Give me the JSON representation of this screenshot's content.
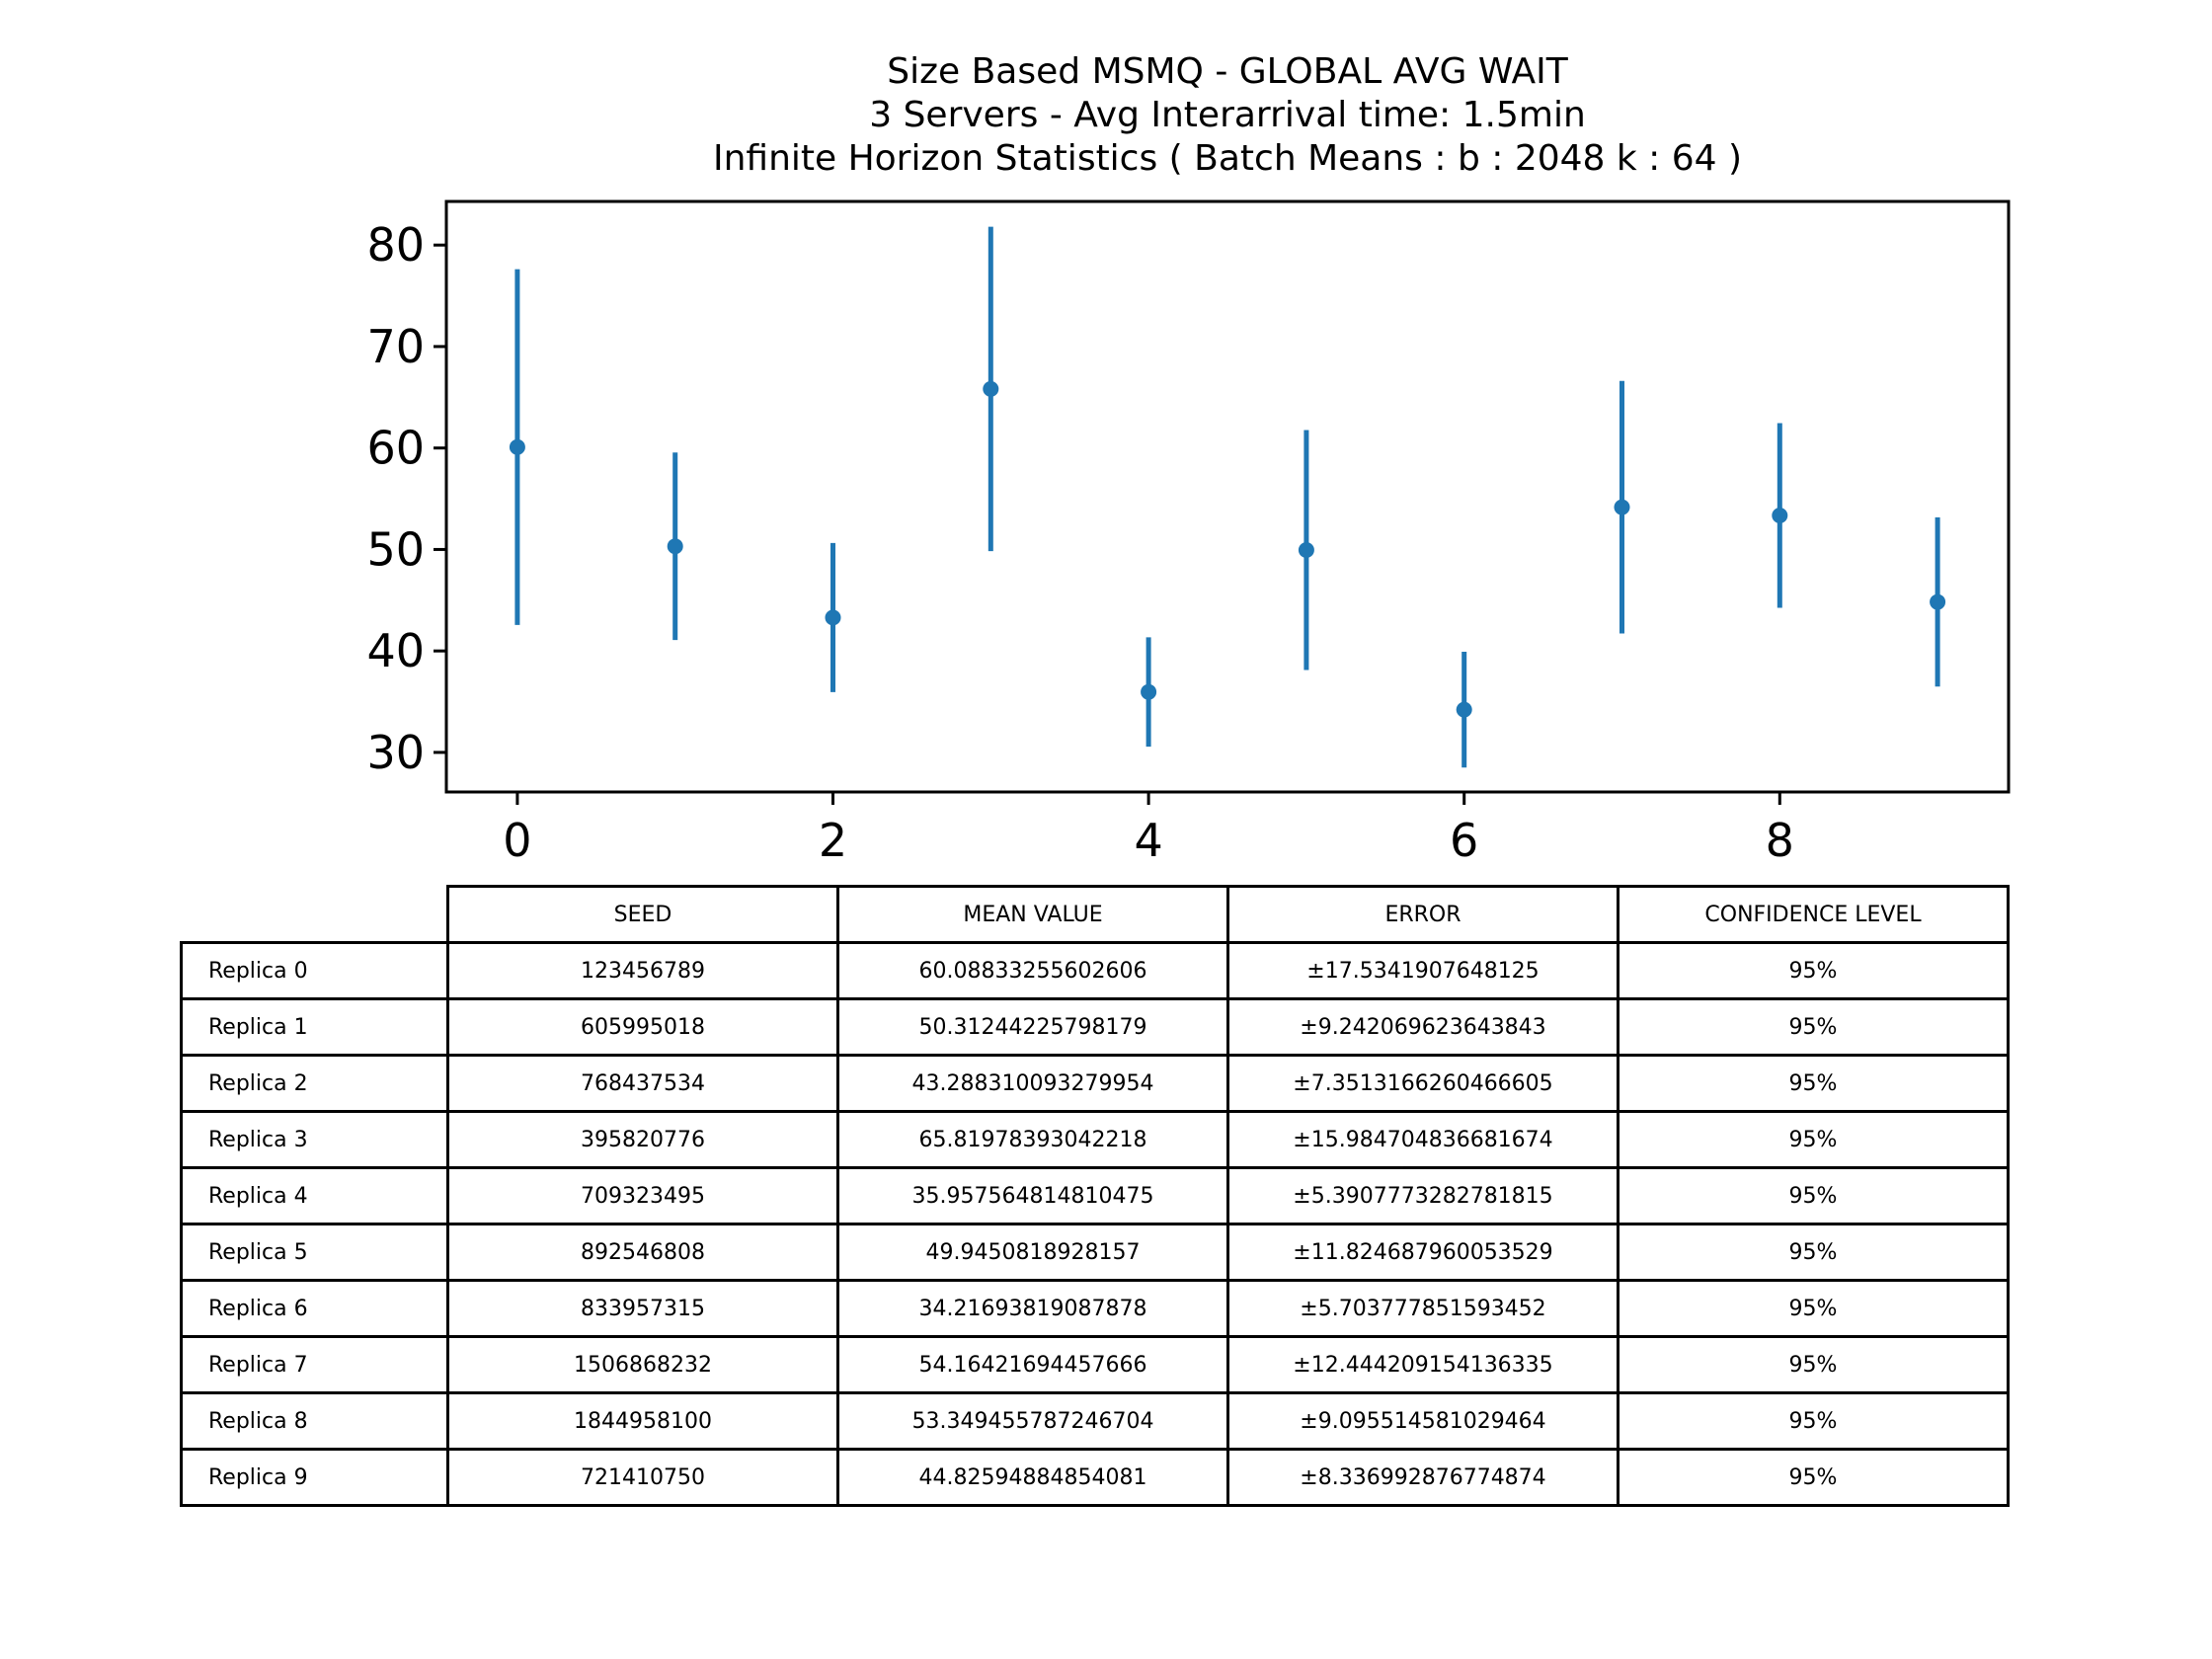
{
  "chart_data": {
    "type": "errorbar",
    "title": [
      "Size Based MSMQ - GLOBAL AVG WAIT",
      "3 Servers -  Avg Interarrival time: 1.5min",
      "Infinite Horizon Statistics ( Batch Means : b : 2048  k : 64 )"
    ],
    "xlabel": "",
    "ylabel": "",
    "x": [
      0,
      1,
      2,
      3,
      4,
      5,
      6,
      7,
      8,
      9
    ],
    "values": [
      60.08833255602606,
      50.31244225798179,
      43.288310093279954,
      65.81978393042218,
      35.957564814810475,
      49.9450818928157,
      34.21693819087878,
      54.16421694457666,
      53.349455787246704,
      44.82594884854081
    ],
    "errors": [
      17.5341907648125,
      9.242069623643843,
      7.3513166260466605,
      15.984704836681674,
      5.3907773282781815,
      11.824687960053529,
      5.703777851593452,
      12.444209154136335,
      9.095514581029464,
      8.336992876774874
    ],
    "xlim": [
      -0.45,
      9.45
    ],
    "ylim": [
      26.1,
      84.3
    ],
    "xticks": [
      0,
      2,
      4,
      6,
      8
    ],
    "yticks": [
      30,
      40,
      50,
      60,
      70,
      80
    ],
    "grid": false,
    "color": "#1f77b4"
  },
  "table": {
    "headers": [
      "SEED",
      "MEAN VALUE",
      "ERROR",
      "CONFIDENCE LEVEL"
    ],
    "rows": [
      {
        "label": "Replica 0",
        "seed": "123456789",
        "mean": "60.08833255602606",
        "error": "±17.5341907648125",
        "confidence": "95%"
      },
      {
        "label": "Replica 1",
        "seed": "605995018",
        "mean": "50.31244225798179",
        "error": "±9.242069623643843",
        "confidence": "95%"
      },
      {
        "label": "Replica 2",
        "seed": "768437534",
        "mean": "43.288310093279954",
        "error": "±7.3513166260466605",
        "confidence": "95%"
      },
      {
        "label": "Replica 3",
        "seed": "395820776",
        "mean": "65.81978393042218",
        "error": "±15.984704836681674",
        "confidence": "95%"
      },
      {
        "label": "Replica 4",
        "seed": "709323495",
        "mean": "35.957564814810475",
        "error": "±5.3907773282781815",
        "confidence": "95%"
      },
      {
        "label": "Replica 5",
        "seed": "892546808",
        "mean": "49.9450818928157",
        "error": "±11.824687960053529",
        "confidence": "95%"
      },
      {
        "label": "Replica 6",
        "seed": "833957315",
        "mean": "34.21693819087878",
        "error": "±5.703777851593452",
        "confidence": "95%"
      },
      {
        "label": "Replica 7",
        "seed": "1506868232",
        "mean": "54.16421694457666",
        "error": "±12.444209154136335",
        "confidence": "95%"
      },
      {
        "label": "Replica 8",
        "seed": "1844958100",
        "mean": "53.349455787246704",
        "error": "±9.095514581029464",
        "confidence": "95%"
      },
      {
        "label": "Replica 9",
        "seed": "721410750",
        "mean": "44.82594884854081",
        "error": "±8.336992876774874",
        "confidence": "95%"
      }
    ]
  }
}
